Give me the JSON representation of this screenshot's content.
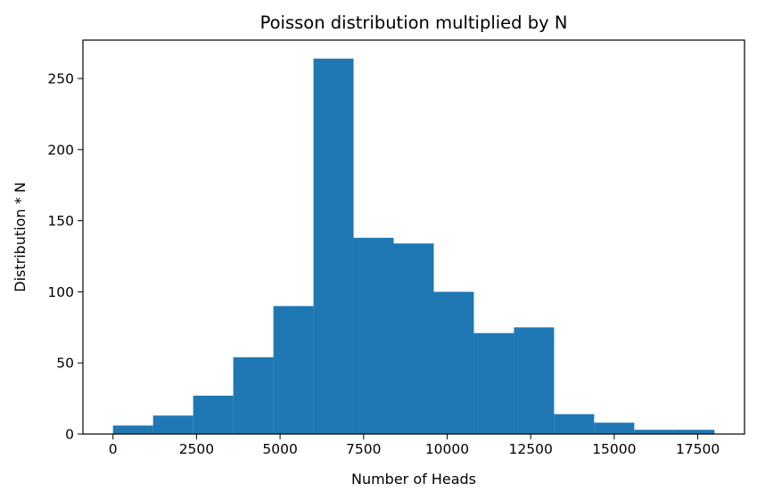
{
  "chart_data": {
    "type": "bar",
    "title": "Poisson distribution multiplied by N",
    "xlabel": "Number of Heads",
    "ylabel": "Distribution * N",
    "bin_edges": [
      0,
      1200,
      2400,
      3600,
      4800,
      6000,
      7200,
      8400,
      9600,
      10800,
      12000,
      13200,
      14400,
      15600,
      16800,
      18000
    ],
    "values": [
      6,
      13,
      27,
      54,
      90,
      264,
      138,
      134,
      100,
      71,
      75,
      14,
      8,
      3,
      3
    ],
    "xlim": [
      -900,
      18900
    ],
    "ylim": [
      0,
      277
    ],
    "xticks": [
      0,
      2500,
      5000,
      7500,
      10000,
      12500,
      15000,
      17500
    ],
    "yticks": [
      0,
      50,
      100,
      150,
      200,
      250
    ],
    "bar_color": "#1f77b4",
    "grid": false
  }
}
